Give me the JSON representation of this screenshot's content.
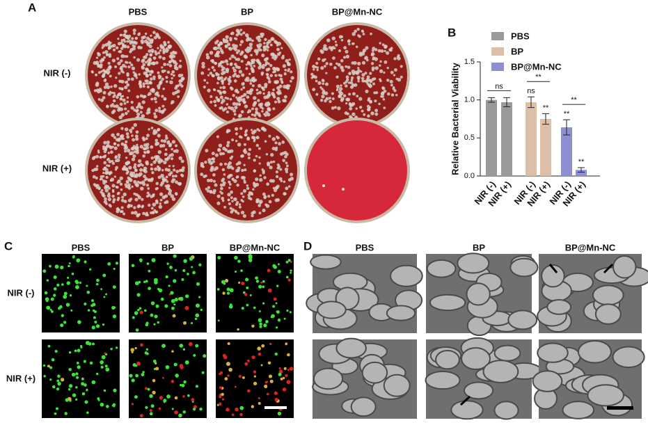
{
  "panel_a": {
    "label": "A",
    "columns": [
      "PBS",
      "BP",
      "BP@Mn-NC"
    ],
    "rows": [
      "NIR (-)",
      "NIR (+)"
    ]
  },
  "chart_data": {
    "type": "bar",
    "panel_label": "B",
    "ylabel": "Relative Bacterial Viability",
    "categories": [
      "NIR (-)",
      "NIR (+)",
      "NIR (-)",
      "NIR (+)",
      "NIR (-)",
      "NIR (+)"
    ],
    "series": [
      {
        "name": "PBS",
        "color": "#9a9a9d",
        "values": [
          1.0,
          0.97,
          null,
          null,
          null,
          null
        ],
        "errors": [
          0.03,
          0.06,
          null,
          null,
          null,
          null
        ],
        "bar_labels": [
          null,
          null,
          null,
          null,
          null,
          null
        ]
      },
      {
        "name": "BP",
        "color": "#dcbfa6",
        "values": [
          null,
          null,
          0.97,
          0.75,
          null,
          null
        ],
        "errors": [
          null,
          null,
          0.07,
          0.07,
          null,
          null
        ],
        "bar_labels": [
          null,
          null,
          "ns",
          "**",
          null,
          null
        ]
      },
      {
        "name": "BP@Mn-NC",
        "color": "#8d8fd0",
        "values": [
          null,
          null,
          null,
          null,
          0.64,
          0.08
        ],
        "errors": [
          null,
          null,
          null,
          null,
          0.1,
          0.03
        ],
        "bar_labels": [
          null,
          null,
          null,
          null,
          "**",
          "**"
        ]
      }
    ],
    "brackets": [
      {
        "from": 0,
        "to": 1,
        "label": "ns"
      },
      {
        "from": 2,
        "to": 3,
        "label": "**"
      },
      {
        "from": 4,
        "to": 5,
        "label": "**"
      }
    ],
    "ylim": [
      0,
      1.5
    ],
    "yticks": [
      {
        "value": 0,
        "label": "0.0"
      },
      0.5,
      {
        "value": 1,
        "label": "1.0"
      },
      1.5
    ]
  },
  "panel_c": {
    "label": "C",
    "columns": [
      "PBS",
      "BP",
      "BP@Mn-NC"
    ],
    "rows": [
      "NIR (-)",
      "NIR (+)"
    ]
  },
  "panel_d": {
    "label": "D",
    "columns": [
      "PBS",
      "BP",
      "BP@Mn-NC"
    ]
  }
}
